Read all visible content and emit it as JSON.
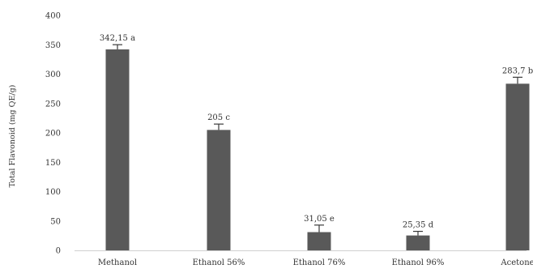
{
  "chart_data": {
    "type": "bar",
    "title": "",
    "xlabel": "",
    "ylabel": "Total Flavonoid (mg QE/g)",
    "ylim": [
      0,
      400
    ],
    "yticks": [
      0,
      50,
      100,
      150,
      200,
      250,
      300,
      350,
      400
    ],
    "grid": false,
    "legend": "none",
    "bar_color": "#595959",
    "categories": [
      "Methanol",
      "Ethanol 56%",
      "Ethanol 76%",
      "Ethanol 96%",
      "Acetone"
    ],
    "series": [
      {
        "values": [
          342.15,
          205,
          31.05,
          25.35,
          283.7
        ],
        "errors": [
          8,
          10,
          12,
          7,
          11
        ],
        "labels": [
          "342,15 a",
          "205 c",
          "31,05 e",
          "25,35 d",
          "283,7 b"
        ]
      }
    ]
  }
}
